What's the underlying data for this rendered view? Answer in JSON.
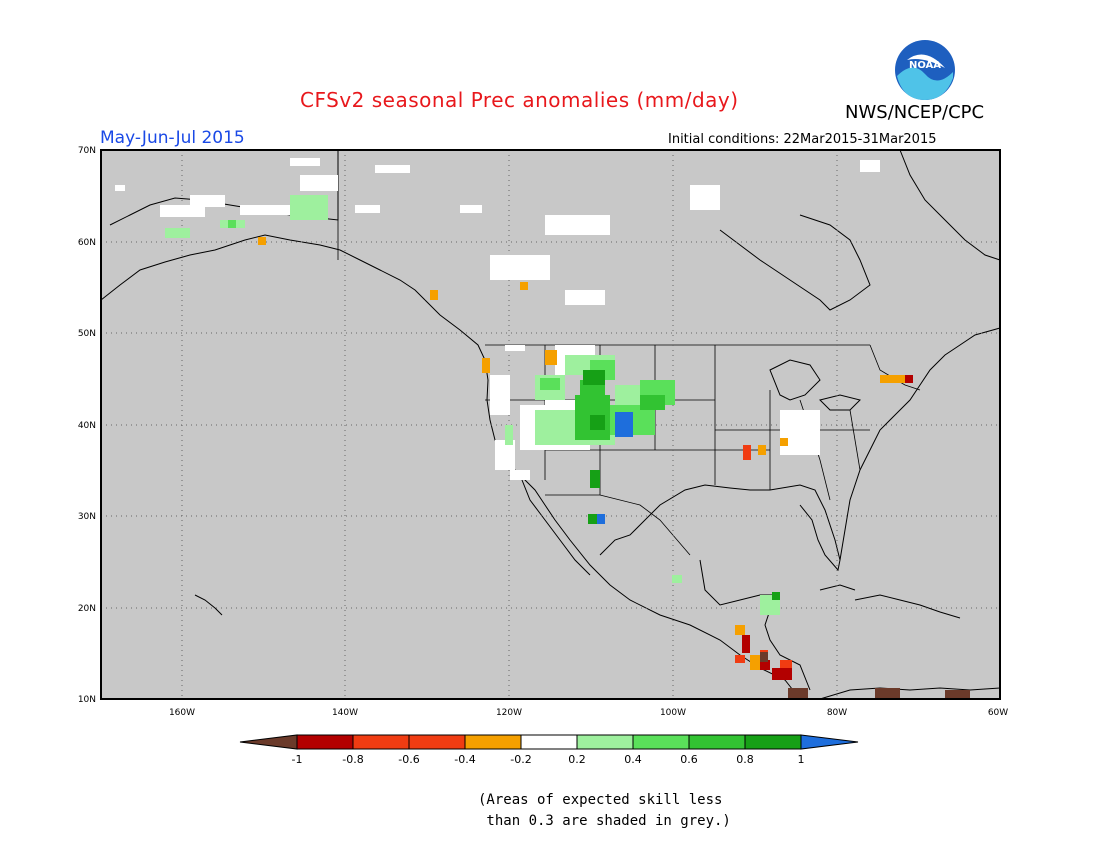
{
  "title": "CFSv2 seasonal Prec anomalies (mm/day)",
  "organization": "NWS/NCEP/CPC",
  "logo_text": "NOAA",
  "period": "May-Jun-Jul 2015",
  "initial_conditions": "Initial conditions: 22Mar2015-31Mar2015",
  "footnote": "(Areas of expected skill less\n than 0.3 are shaded in grey.)",
  "map": {
    "lat_labels": [
      "70N",
      "60N",
      "50N",
      "40N",
      "30N",
      "20N",
      "10N"
    ],
    "lon_labels": [
      "160W",
      "140W",
      "120W",
      "100W",
      "80W",
      "60W"
    ]
  },
  "legend": {
    "labels": [
      "-1",
      "-0.8",
      "-0.6",
      "-0.4",
      "-0.2",
      "0.2",
      "0.4",
      "0.6",
      "0.8",
      "1"
    ],
    "colors": [
      "#6b3a2a",
      "#b30000",
      "#f03c12",
      "#f5a000",
      "#ffffff",
      "#9ef09e",
      "#5ae05a",
      "#32c332",
      "#16a016",
      "#1e6edc"
    ]
  },
  "colors": {
    "grey_no_skill": "#c8c8c8",
    "title_red": "#e8181c",
    "period_blue": "#1a49e6"
  }
}
